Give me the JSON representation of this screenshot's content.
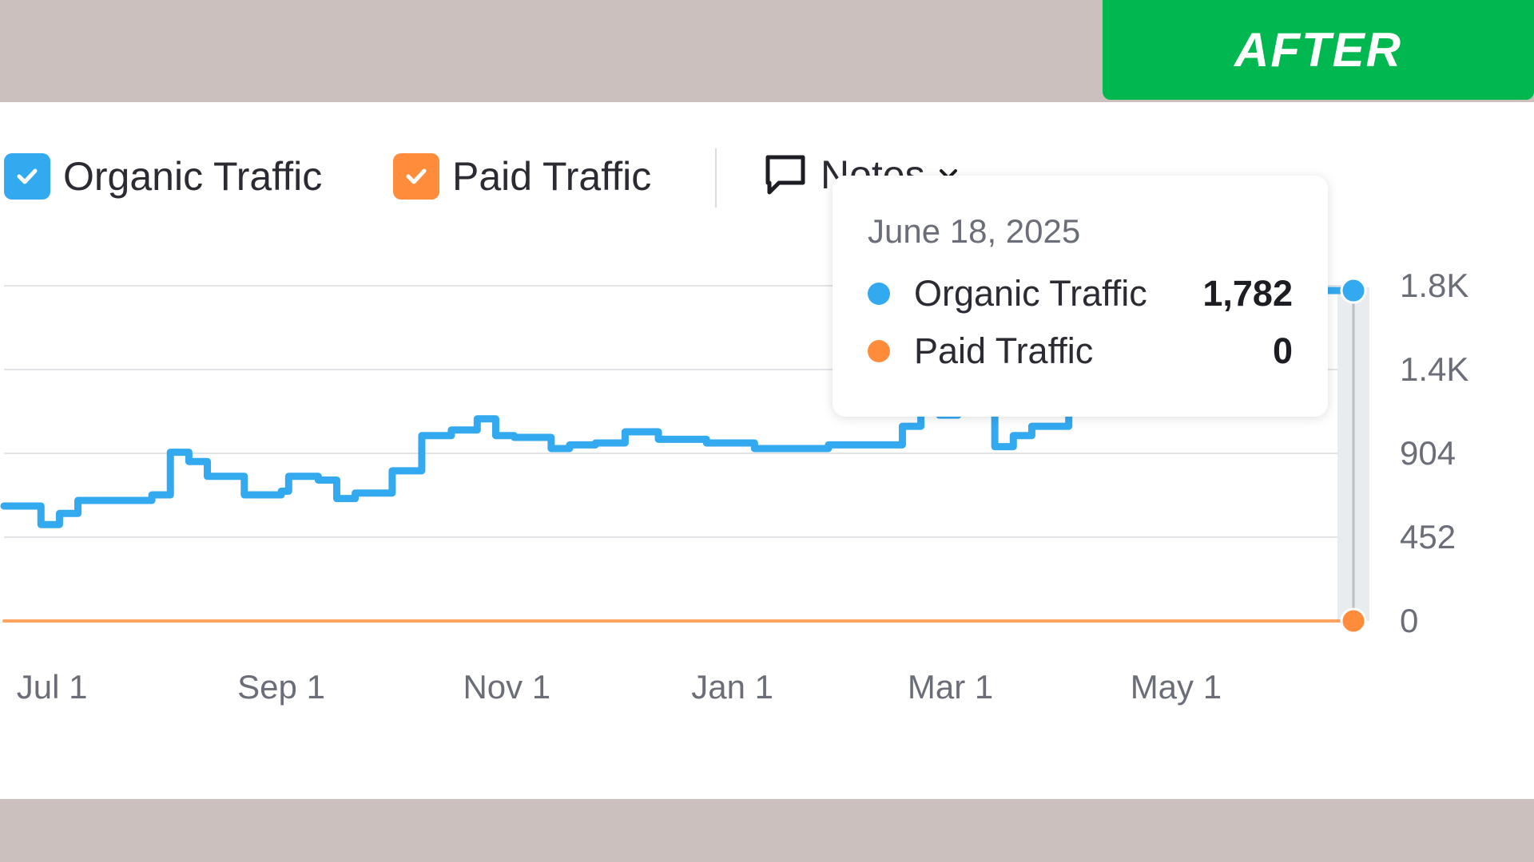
{
  "badge": {
    "label": "AFTER"
  },
  "legend": {
    "organic": {
      "label": "Organic Traffic",
      "checked": true,
      "color": "#33a9f0"
    },
    "paid": {
      "label": "Paid Traffic",
      "checked": true,
      "color": "#ff8c3a"
    },
    "notes": {
      "label": "Notes"
    }
  },
  "tooltip": {
    "date": "June 18, 2025",
    "rows": [
      {
        "name": "Organic Traffic",
        "value": "1,782",
        "color": "#33a9f0"
      },
      {
        "name": "Paid Traffic",
        "value": "0",
        "color": "#ff8c3a"
      }
    ]
  },
  "chart_data": {
    "type": "line",
    "title": "",
    "xlabel": "",
    "ylabel": "",
    "x_ticks": [
      "Jul 1",
      "Sep 1",
      "Nov 1",
      "Jan 1",
      "Mar 1",
      "May 1"
    ],
    "y_ticks": [
      "0",
      "452",
      "904",
      "1.4K",
      "1.8K"
    ],
    "ylim": [
      0,
      1808
    ],
    "xlim": [
      "2024-06-18",
      "2025-06-18"
    ],
    "grid": true,
    "series": [
      {
        "name": "Organic Traffic",
        "color": "#33a9f0",
        "x": [
          "2024-06-18",
          "2024-06-28",
          "2024-07-03",
          "2024-07-08",
          "2024-07-18",
          "2024-07-28",
          "2024-08-02",
          "2024-08-07",
          "2024-08-12",
          "2024-08-22",
          "2024-09-01",
          "2024-09-03",
          "2024-09-11",
          "2024-09-16",
          "2024-09-21",
          "2024-10-01",
          "2024-10-09",
          "2024-10-17",
          "2024-10-24",
          "2024-10-29",
          "2024-11-03",
          "2024-11-13",
          "2024-11-18",
          "2024-11-25",
          "2024-12-03",
          "2024-12-12",
          "2024-12-25",
          "2025-01-07",
          "2025-01-17",
          "2025-01-27",
          "2025-02-06",
          "2025-02-16",
          "2025-02-21",
          "2025-02-26",
          "2025-03-03",
          "2025-03-08",
          "2025-03-13",
          "2025-03-18",
          "2025-03-23",
          "2025-03-28",
          "2025-04-02",
          "2025-06-18"
        ],
        "y": [
          620,
          520,
          580,
          650,
          650,
          680,
          910,
          860,
          780,
          680,
          700,
          780,
          760,
          660,
          690,
          810,
          1000,
          1030,
          1090,
          1000,
          990,
          930,
          950,
          960,
          1020,
          980,
          960,
          930,
          930,
          950,
          950,
          1050,
          1130,
          1110,
          1140,
          1140,
          940,
          1000,
          1050,
          1050,
          1782,
          1782
        ]
      },
      {
        "name": "Paid Traffic",
        "color": "#ff8c3a",
        "x": [
          "2024-06-18",
          "2025-06-18"
        ],
        "y": [
          0,
          0
        ]
      }
    ]
  }
}
